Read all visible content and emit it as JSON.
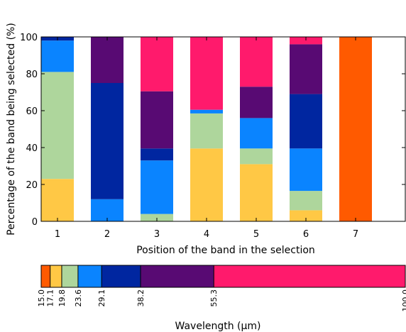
{
  "chart_data": [
    {
      "type": "bar",
      "stacked": true,
      "categories": [
        "1",
        "2",
        "3",
        "4",
        "5",
        "6",
        "7"
      ],
      "xlabel": "Position of the band in the selection",
      "ylabel": "Percentage of the band being selected (%)",
      "ylim": [
        0,
        100
      ],
      "yticks": [
        0,
        20,
        40,
        60,
        80,
        100
      ],
      "grid": false,
      "series": [
        {
          "color": "#ff5a00",
          "values": [
            0,
            0,
            0,
            0,
            0,
            0,
            100
          ]
        },
        {
          "color": "#ffc845",
          "values": [
            23,
            0,
            0,
            39.5,
            31,
            6,
            0
          ]
        },
        {
          "color": "#aed69c",
          "values": [
            58,
            0,
            4,
            19,
            8.5,
            10.5,
            0
          ]
        },
        {
          "color": "#0a84ff",
          "values": [
            17,
            12,
            29,
            2,
            16.5,
            23,
            0
          ]
        },
        {
          "color": "#0026a0",
          "values": [
            2,
            63,
            6.5,
            0,
            0,
            29.5,
            0
          ]
        },
        {
          "color": "#580a73",
          "values": [
            0,
            25,
            31,
            0,
            17,
            27,
            0
          ]
        },
        {
          "color": "#ff1a6c",
          "values": [
            0,
            0,
            29.5,
            39.5,
            27,
            4,
            0
          ]
        }
      ]
    },
    {
      "type": "colorbar",
      "xlabel": "Wavelength (μm)",
      "bounds": [
        "15.0",
        "17.1",
        "19.8",
        "23.6",
        "29.1",
        "38.2",
        "55.3",
        "100.0"
      ],
      "colors": [
        "#ff5a00",
        "#ffc845",
        "#aed69c",
        "#0a84ff",
        "#0026a0",
        "#580a73",
        "#ff1a6c"
      ]
    }
  ]
}
